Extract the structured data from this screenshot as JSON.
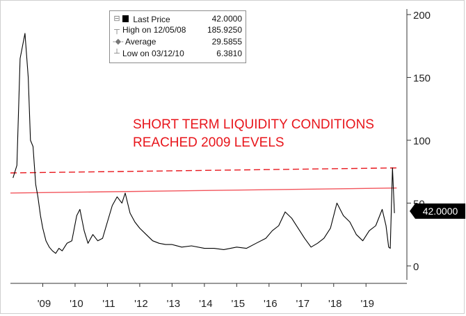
{
  "chart_data": {
    "type": "line",
    "series": [
      {
        "name": "Last Price",
        "x": [
          "2008.08",
          "2008.20",
          "2008.30",
          "2008.45",
          "2008.55",
          "2008.62",
          "2008.70",
          "2008.78",
          "2008.85",
          "2008.93",
          "2009.00",
          "2009.10",
          "2009.20",
          "2009.30",
          "2009.40",
          "2009.50",
          "2009.60",
          "2009.75",
          "2009.90",
          "2010.05",
          "2010.15",
          "2010.28",
          "2010.40",
          "2010.55",
          "2010.70",
          "2010.85",
          "2011.00",
          "2011.15",
          "2011.30",
          "2011.45",
          "2011.55",
          "2011.70",
          "2011.85",
          "2012.00",
          "2012.20",
          "2012.40",
          "2012.60",
          "2012.80",
          "2013.00",
          "2013.30",
          "2013.60",
          "2014.00",
          "2014.30",
          "2014.60",
          "2015.00",
          "2015.30",
          "2015.60",
          "2015.90",
          "2016.10",
          "2016.30",
          "2016.50",
          "2016.70",
          "2016.90",
          "2017.10",
          "2017.30",
          "2017.50",
          "2017.70",
          "2017.90",
          "2018.10",
          "2018.30",
          "2018.50",
          "2018.70",
          "2018.90",
          "2019.10",
          "2019.30",
          "2019.50",
          "2019.62",
          "2019.70",
          "2019.75",
          "2019.82",
          "2019.88"
        ],
        "values": [
          70,
          80,
          165,
          185,
          150,
          100,
          95,
          65,
          55,
          40,
          30,
          20,
          15,
          12,
          10,
          14,
          12,
          18,
          20,
          40,
          45,
          28,
          18,
          25,
          20,
          22,
          35,
          48,
          55,
          50,
          58,
          42,
          35,
          30,
          25,
          20,
          18,
          17,
          17,
          15,
          16,
          14,
          14,
          13,
          15,
          14,
          18,
          22,
          28,
          32,
          43,
          38,
          30,
          22,
          15,
          18,
          22,
          30,
          50,
          40,
          35,
          25,
          20,
          28,
          32,
          45,
          32,
          15,
          14,
          78,
          42
        ]
      }
    ],
    "legend": {
      "last": {
        "label": "Last Price",
        "value": "42.0000"
      },
      "high": {
        "label": "High on 12/05/08",
        "value": "185.9250"
      },
      "average": {
        "label": "Average",
        "value": "29.5855"
      },
      "low": {
        "label": "Low on 03/12/10",
        "value": "6.3810"
      }
    },
    "reference_lines": [
      {
        "style": "solid",
        "color": "#f2545b",
        "from": [
          2008.0,
          58
        ],
        "to": [
          2019.95,
          62
        ]
      },
      {
        "style": "dashed",
        "color": "#e8151b",
        "from": [
          2008.0,
          74
        ],
        "to": [
          2019.95,
          78
        ]
      }
    ],
    "annotation": [
      "SHORT TERM LIQUIDITY CONDITIONS",
      "REACHED 2009 LEVELS"
    ],
    "last_value_badge": "42.0000",
    "y_ticks": [
      "200",
      "150",
      "100",
      "50",
      "0"
    ],
    "y_tick_values": [
      200,
      150,
      100,
      50,
      0
    ],
    "x_ticks": [
      "'09",
      "'10",
      "'11",
      "'12",
      "'13",
      "'14",
      "'15",
      "'16",
      "'17",
      "'18",
      "'19"
    ],
    "x_tick_values": [
      2009,
      2010,
      2011,
      2012,
      2013,
      2014,
      2015,
      2016,
      2017,
      2018,
      2019
    ],
    "ylim": [
      -10,
      200
    ],
    "xlim": [
      2008.0,
      2020.2
    ],
    "y_axis_side": "right",
    "grid": false,
    "legend_placement": "top-center",
    "colors": {
      "line": "#000000",
      "annotation": "#e8151b",
      "badge": "#000000",
      "badge_text": "#ffffff"
    }
  }
}
